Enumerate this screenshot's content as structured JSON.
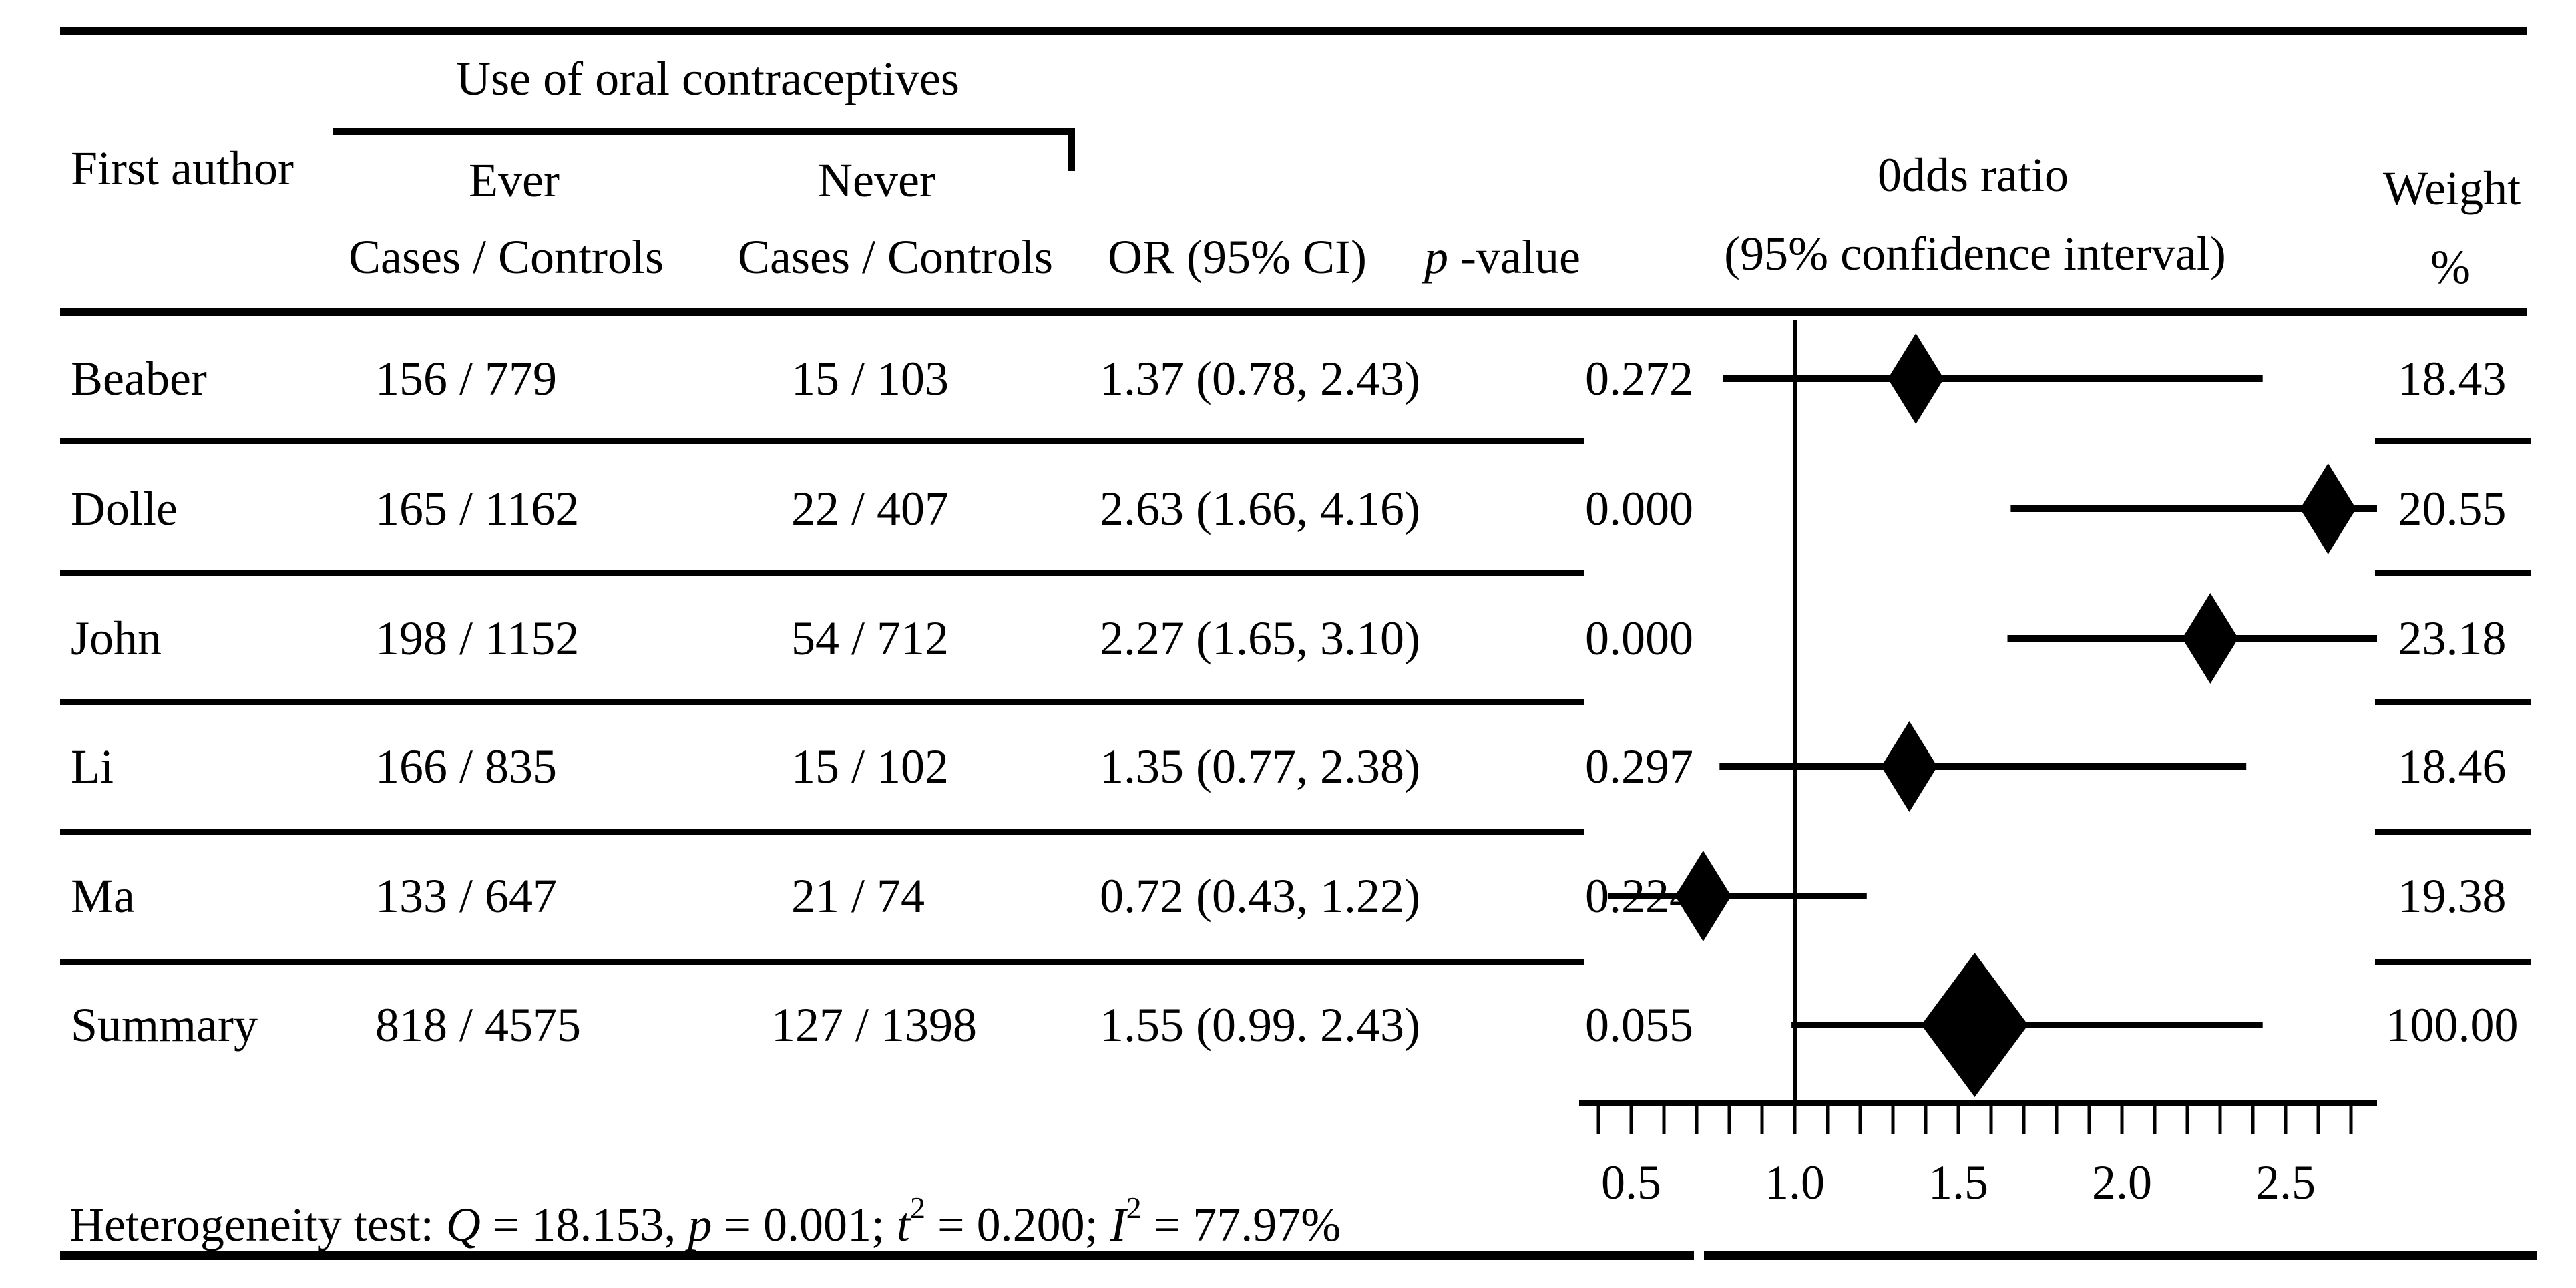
{
  "title": "Use of oral contraceptives",
  "header": {
    "first_author": "First author",
    "ever": "Ever",
    "never": "Never",
    "cases_controls_ever": "Cases / Controls",
    "cases_controls_never": "Cases / Controls",
    "or_ci": "OR (95% CI)",
    "p_sym": "p",
    "p_rest": " -value",
    "odds_ratio_line1": "0dds ratio",
    "odds_ratio_line2": "(95% confidence interval)",
    "weight": "Weight",
    "percent": "%"
  },
  "rows": [
    {
      "author": "Beaber",
      "ever": "156 / 779",
      "never": "15 / 103",
      "or_ci": "1.37 (0.78, 2.43)",
      "p": "0.272",
      "weight": "18.43"
    },
    {
      "author": "Dolle",
      "ever": "165 / 1162",
      "never": "22 / 407",
      "or_ci": "2.63 (1.66, 4.16)",
      "p": "0.000",
      "weight": "20.55"
    },
    {
      "author": "John",
      "ever": "198 / 1152",
      "never": "54 / 712",
      "or_ci": "2.27 (1.65, 3.10)",
      "p": "0.000",
      "weight": "23.18"
    },
    {
      "author": "Li",
      "ever": "166 / 835",
      "never": "15 / 102",
      "or_ci": "1.35 (0.77, 2.38)",
      "p": "0.297",
      "weight": "18.46"
    },
    {
      "author": "Ma",
      "ever": "133 / 647",
      "never": "21 / 74",
      "or_ci": "0.72 (0.43, 1.22)",
      "p": "0.224",
      "weight": "19.38"
    },
    {
      "author": "Summary",
      "ever": "818 / 4575",
      "never": "127 / 1398",
      "or_ci": "1.55 (0.99. 2.43)",
      "p": "0.055",
      "weight": "100.00"
    }
  ],
  "footer": {
    "prefix": "Heterogeneity test: ",
    "q_sym": "Q",
    "q_val": " = 18.153, ",
    "p_sym": "p",
    "p_val": " = 0.001; ",
    "t_sym": "t",
    "t_sup": "2",
    "t_val": " = 0.200; ",
    "i_sym": "I",
    "i_sup": "2",
    "i_val": " = 77.97%"
  },
  "colors": {
    "ink": "#000000",
    "background": "#ffffff"
  },
  "chart_data": {
    "type": "forest",
    "title": "0dds ratio (95% confidence interval)",
    "x_axis": {
      "scale": "linear",
      "tick_labels": [
        "0.5",
        "1.0",
        "1.5",
        "2.0",
        "2.5"
      ],
      "tick_values": [
        0.5,
        1.0,
        1.5,
        2.0,
        2.5
      ],
      "minor_tick_start": 0.4,
      "minor_tick_step": 0.1,
      "minor_tick_count": 24,
      "range_min": 0.35,
      "range_max": 2.78,
      "reference_line": 1.0
    },
    "studies": [
      {
        "name": "Beaber",
        "or": 1.37,
        "ci_low": 0.78,
        "ci_high": 2.43,
        "weight": 18.43,
        "p": 0.272,
        "summary": false
      },
      {
        "name": "Dolle",
        "or": 2.63,
        "ci_low": 1.66,
        "ci_high": 4.16,
        "weight": 20.55,
        "p": 0.0,
        "summary": false
      },
      {
        "name": "John",
        "or": 2.27,
        "ci_low": 1.65,
        "ci_high": 3.1,
        "weight": 23.18,
        "p": 0.0,
        "summary": false
      },
      {
        "name": "Li",
        "or": 1.35,
        "ci_low": 0.77,
        "ci_high": 2.38,
        "weight": 18.46,
        "p": 0.297,
        "summary": false
      },
      {
        "name": "Ma",
        "or": 0.72,
        "ci_low": 0.43,
        "ci_high": 1.22,
        "weight": 19.38,
        "p": 0.224,
        "summary": false
      },
      {
        "name": "Summary",
        "or": 1.55,
        "ci_low": 0.99,
        "ci_high": 2.43,
        "weight": 100.0,
        "p": 0.055,
        "summary": true
      }
    ]
  }
}
